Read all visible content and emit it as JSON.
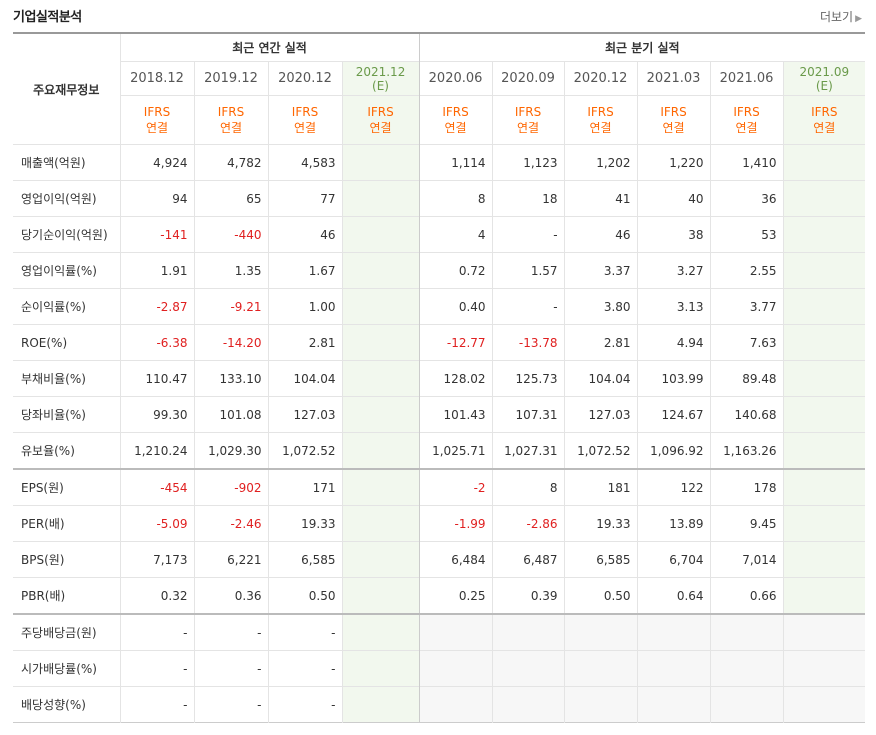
{
  "header": {
    "title": "기업실적분석",
    "more_label": "더보기"
  },
  "table": {
    "main_label": "주요재무정보",
    "group_annual": "최근 연간 실적",
    "group_quarter": "최근 분기 실적",
    "periods": [
      {
        "label": "2018.12",
        "est": ""
      },
      {
        "label": "2019.12",
        "est": ""
      },
      {
        "label": "2020.12",
        "est": ""
      },
      {
        "label": "2021.12",
        "est": "(E)"
      },
      {
        "label": "2020.06",
        "est": ""
      },
      {
        "label": "2020.09",
        "est": ""
      },
      {
        "label": "2020.12",
        "est": ""
      },
      {
        "label": "2021.03",
        "est": ""
      },
      {
        "label": "2021.06",
        "est": ""
      },
      {
        "label": "2021.09",
        "est": "(E)"
      }
    ],
    "ifrs_top": "IFRS",
    "ifrs_bottom": "연결",
    "rows": [
      {
        "label": "매출액(억원)",
        "values": [
          "4,924",
          "4,782",
          "4,583",
          "",
          "1,114",
          "1,123",
          "1,202",
          "1,220",
          "1,410",
          ""
        ]
      },
      {
        "label": "영업이익(억원)",
        "values": [
          "94",
          "65",
          "77",
          "",
          "8",
          "18",
          "41",
          "40",
          "36",
          ""
        ]
      },
      {
        "label": "당기순이익(억원)",
        "values": [
          "-141",
          "-440",
          "46",
          "",
          "4",
          "-",
          "46",
          "38",
          "53",
          ""
        ]
      },
      {
        "label": "영업이익률(%)",
        "values": [
          "1.91",
          "1.35",
          "1.67",
          "",
          "0.72",
          "1.57",
          "3.37",
          "3.27",
          "2.55",
          ""
        ]
      },
      {
        "label": "순이익률(%)",
        "values": [
          "-2.87",
          "-9.21",
          "1.00",
          "",
          "0.40",
          "-",
          "3.80",
          "3.13",
          "3.77",
          ""
        ]
      },
      {
        "label": "ROE(%)",
        "values": [
          "-6.38",
          "-14.20",
          "2.81",
          "",
          "-12.77",
          "-13.78",
          "2.81",
          "4.94",
          "7.63",
          ""
        ]
      },
      {
        "label": "부채비율(%)",
        "values": [
          "110.47",
          "133.10",
          "104.04",
          "",
          "128.02",
          "125.73",
          "104.04",
          "103.99",
          "89.48",
          ""
        ]
      },
      {
        "label": "당좌비율(%)",
        "values": [
          "99.30",
          "101.08",
          "127.03",
          "",
          "101.43",
          "107.31",
          "127.03",
          "124.67",
          "140.68",
          ""
        ]
      },
      {
        "label": "유보율(%)",
        "values": [
          "1,210.24",
          "1,029.30",
          "1,072.52",
          "",
          "1,025.71",
          "1,027.31",
          "1,072.52",
          "1,096.92",
          "1,163.26",
          ""
        ]
      },
      {
        "label": "EPS(원)",
        "values": [
          "-454",
          "-902",
          "171",
          "",
          "-2",
          "8",
          "181",
          "122",
          "178",
          ""
        ]
      },
      {
        "label": "PER(배)",
        "values": [
          "-5.09",
          "-2.46",
          "19.33",
          "",
          "-1.99",
          "-2.86",
          "19.33",
          "13.89",
          "9.45",
          ""
        ]
      },
      {
        "label": "BPS(원)",
        "values": [
          "7,173",
          "6,221",
          "6,585",
          "",
          "6,484",
          "6,487",
          "6,585",
          "6,704",
          "7,014",
          ""
        ]
      },
      {
        "label": "PBR(배)",
        "values": [
          "0.32",
          "0.36",
          "0.50",
          "",
          "0.25",
          "0.39",
          "0.50",
          "0.64",
          "0.66",
          ""
        ]
      },
      {
        "label": "주당배당금(원)",
        "values": [
          "-",
          "-",
          "-",
          "",
          "",
          "",
          "",
          "",
          "",
          ""
        ]
      },
      {
        "label": "시가배당률(%)",
        "values": [
          "-",
          "-",
          "-",
          "",
          "",
          "",
          "",
          "",
          "",
          ""
        ]
      },
      {
        "label": "배당성향(%)",
        "values": [
          "-",
          "-",
          "-",
          "",
          "",
          "",
          "",
          "",
          "",
          ""
        ]
      }
    ]
  },
  "colors": {
    "negative": "#e02020",
    "ifrs": "#ff6600",
    "estimate_bg": "#f2f8ee"
  }
}
